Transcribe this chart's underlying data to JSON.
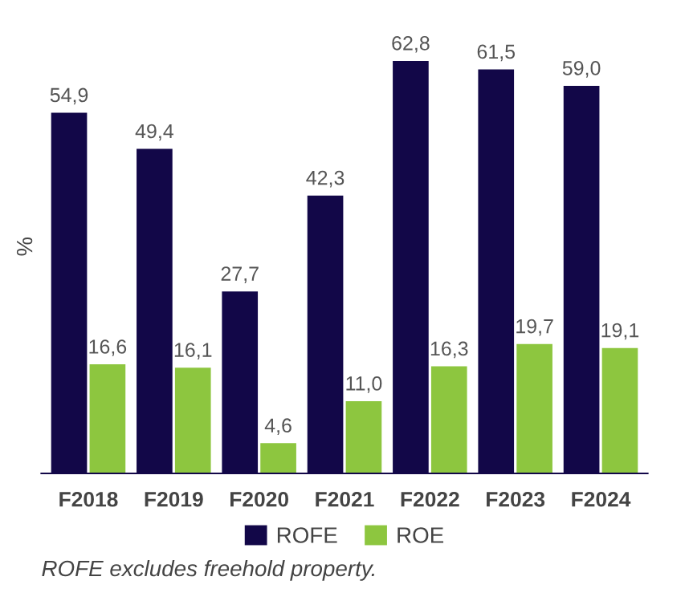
{
  "chart_data": {
    "type": "bar",
    "ylabel": "%",
    "categories": [
      "F2018",
      "F2019",
      "F2020",
      "F2021",
      "F2022",
      "F2023",
      "F2024"
    ],
    "series": [
      {
        "name": "ROFE",
        "color": "#120748",
        "values": [
          54.9,
          49.4,
          27.7,
          42.3,
          62.8,
          61.5,
          59.0
        ],
        "value_labels": [
          "54,9",
          "49,4",
          "27,7",
          "42,3",
          "62,8",
          "61,5",
          "59,0"
        ]
      },
      {
        "name": "ROE",
        "color": "#8dc63f",
        "values": [
          16.6,
          16.1,
          4.6,
          11.0,
          16.3,
          19.7,
          19.1
        ],
        "value_labels": [
          "16,6",
          "16,1",
          "4,6",
          "11,0",
          "16,3",
          "19,7",
          "19,1"
        ]
      }
    ],
    "legend": "bottom",
    "grid": false,
    "tick_labels": "x",
    "annotations": [
      "ROFE excludes freehold property."
    ]
  }
}
